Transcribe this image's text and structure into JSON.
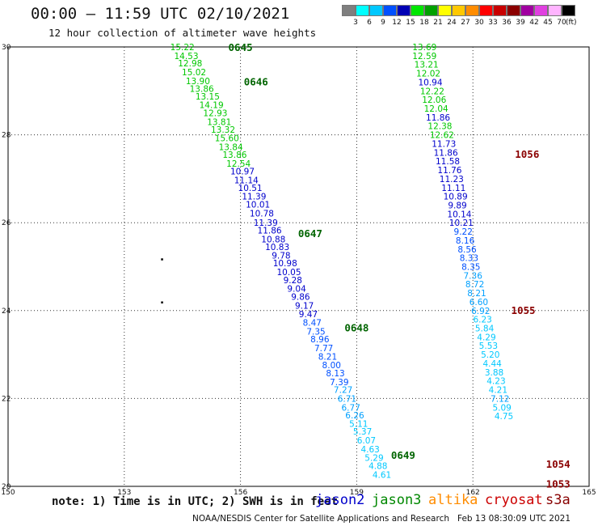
{
  "header": {
    "title": "00:00 – 11:59 UTC 02/10/2021",
    "subtitle": "12 hour collection of altimeter wave heights"
  },
  "colorbar": {
    "unit": "(ft)",
    "bins": [
      {
        "label": "3",
        "color": "#7f7f7f"
      },
      {
        "label": "6",
        "color": "#00ffff"
      },
      {
        "label": "9",
        "color": "#00c8ff"
      },
      {
        "label": "12",
        "color": "#0050ff"
      },
      {
        "label": "15",
        "color": "#0000b4"
      },
      {
        "label": "18",
        "color": "#00e600"
      },
      {
        "label": "21",
        "color": "#00a000"
      },
      {
        "label": "24",
        "color": "#ffff00"
      },
      {
        "label": "27",
        "color": "#ffc800"
      },
      {
        "label": "30",
        "color": "#ff8c00"
      },
      {
        "label": "33",
        "color": "#ff0000"
      },
      {
        "label": "36",
        "color": "#c80000"
      },
      {
        "label": "39",
        "color": "#8b0000"
      },
      {
        "label": "42",
        "color": "#a000a0"
      },
      {
        "label": "45",
        "color": "#e040e0"
      },
      {
        "label": "70",
        "color": "#ffb4ff"
      },
      {
        "label": "",
        "color": "#000000"
      }
    ]
  },
  "footer": {
    "note": "note: 1) Time is in UTC; 2) SWH is in feet",
    "credit": "NOAA/NESDIS Center for Satellite Applications and Research   Feb 13 08:30:09 UTC 2021",
    "satellites": [
      {
        "name": "jason2",
        "color": "#0000cc"
      },
      {
        "name": "jason3",
        "color": "#008800"
      },
      {
        "name": "altika",
        "color": "#ff8c00"
      },
      {
        "name": "cryosat",
        "color": "#cc0000"
      },
      {
        "name": "s3a",
        "color": "#880000"
      }
    ]
  },
  "map_data": {
    "lon_range": [
      150,
      165
    ],
    "lat_range": [
      20,
      30
    ],
    "lon_ticks": [
      "150",
      "153",
      "156",
      "159",
      "162",
      "165"
    ],
    "lat_ticks": [
      "20",
      "22",
      "24",
      "26",
      "28",
      "30"
    ],
    "time_labels": [
      {
        "text": "0645",
        "color": "#006400",
        "lon": 156.0,
        "lat": 29.98
      },
      {
        "text": "0646",
        "color": "#006400",
        "lon": 156.4,
        "lat": 29.2
      },
      {
        "text": "0647",
        "color": "#006400",
        "lon": 157.8,
        "lat": 25.75
      },
      {
        "text": "0648",
        "color": "#006400",
        "lon": 159.0,
        "lat": 23.6
      },
      {
        "text": "0649",
        "color": "#006400",
        "lon": 160.2,
        "lat": 20.7
      },
      {
        "text": "1056",
        "color": "#8b0000",
        "lon": 163.4,
        "lat": 27.55
      },
      {
        "text": "1055",
        "color": "#8b0000",
        "lon": 163.3,
        "lat": 24.0
      },
      {
        "text": "1054",
        "color": "#8b0000",
        "lon": 164.2,
        "lat": 20.5
      },
      {
        "text": "1053",
        "color": "#8b0000",
        "lon": 164.2,
        "lat": 20.05
      }
    ],
    "dots": [
      {
        "lon": 153.97,
        "lat": 25.17
      },
      {
        "lon": 153.97,
        "lat": 24.19
      }
    ],
    "tracks": [
      {
        "name": "jason3 pass",
        "points": [
          {
            "v": "15.22",
            "lon": 154.5,
            "lat": 30.0,
            "color": "#00c800"
          },
          {
            "v": "14.53",
            "lon": 154.6,
            "lat": 29.8,
            "color": "#00c800"
          },
          {
            "v": "12.98",
            "lon": 154.7,
            "lat": 29.63,
            "color": "#00c800"
          },
          {
            "v": "15.02",
            "lon": 154.8,
            "lat": 29.43,
            "color": "#00c800"
          },
          {
            "v": "13.90",
            "lon": 154.9,
            "lat": 29.23,
            "color": "#00c800"
          },
          {
            "v": "13.86",
            "lon": 155.0,
            "lat": 29.05,
            "color": "#00c800"
          },
          {
            "v": "13.15",
            "lon": 155.15,
            "lat": 28.88,
            "color": "#00c800"
          },
          {
            "v": "14.19",
            "lon": 155.25,
            "lat": 28.68,
            "color": "#00c800"
          },
          {
            "v": "12.93",
            "lon": 155.35,
            "lat": 28.5,
            "color": "#00c800"
          },
          {
            "v": "13.81",
            "lon": 155.45,
            "lat": 28.3,
            "color": "#00c800"
          },
          {
            "v": "13.32",
            "lon": 155.55,
            "lat": 28.12,
            "color": "#00c800"
          },
          {
            "v": "15.60",
            "lon": 155.65,
            "lat": 27.93,
            "color": "#00c800"
          },
          {
            "v": "13.84",
            "lon": 155.75,
            "lat": 27.73,
            "color": "#00c800"
          },
          {
            "v": "13.86",
            "lon": 155.85,
            "lat": 27.55,
            "color": "#00c800"
          },
          {
            "v": "12.54",
            "lon": 155.95,
            "lat": 27.35,
            "color": "#00c800"
          },
          {
            "v": "10.97",
            "lon": 156.05,
            "lat": 27.17,
            "color": "#0000cc"
          },
          {
            "v": "11.14",
            "lon": 156.15,
            "lat": 26.97,
            "color": "#0000cc"
          },
          {
            "v": "10.51",
            "lon": 156.25,
            "lat": 26.8,
            "color": "#0000cc"
          },
          {
            "v": "11.39",
            "lon": 156.35,
            "lat": 26.6,
            "color": "#0000cc"
          },
          {
            "v": "10.01",
            "lon": 156.45,
            "lat": 26.42,
            "color": "#0000cc"
          },
          {
            "v": "10.78",
            "lon": 156.55,
            "lat": 26.22,
            "color": "#0000cc"
          },
          {
            "v": "11.39",
            "lon": 156.65,
            "lat": 26.0,
            "color": "#0000cc"
          },
          {
            "v": "11.86",
            "lon": 156.75,
            "lat": 25.83,
            "color": "#0000cc"
          },
          {
            "v": "10.88",
            "lon": 156.85,
            "lat": 25.63,
            "color": "#0000cc"
          },
          {
            "v": "10.83",
            "lon": 156.95,
            "lat": 25.45,
            "color": "#0000cc"
          },
          {
            "v": "9.78",
            "lon": 157.05,
            "lat": 25.26,
            "color": "#0000cc"
          },
          {
            "v": "10.98",
            "lon": 157.15,
            "lat": 25.08,
            "color": "#0000cc"
          },
          {
            "v": "10.05",
            "lon": 157.25,
            "lat": 24.88,
            "color": "#0000cc"
          },
          {
            "v": "9.28",
            "lon": 157.35,
            "lat": 24.7,
            "color": "#0000cc"
          },
          {
            "v": "9.04",
            "lon": 157.45,
            "lat": 24.5,
            "color": "#0000cc"
          },
          {
            "v": "9.86",
            "lon": 157.55,
            "lat": 24.32,
            "color": "#0000cc"
          },
          {
            "v": "9.17",
            "lon": 157.65,
            "lat": 24.12,
            "color": "#0000cc"
          },
          {
            "v": "9.47",
            "lon": 157.75,
            "lat": 23.92,
            "color": "#0000cc"
          },
          {
            "v": "8.47",
            "lon": 157.85,
            "lat": 23.73,
            "color": "#0050ff"
          },
          {
            "v": "7.35",
            "lon": 157.95,
            "lat": 23.53,
            "color": "#0050ff"
          },
          {
            "v": "8.96",
            "lon": 158.05,
            "lat": 23.35,
            "color": "#0050ff"
          },
          {
            "v": "7.77",
            "lon": 158.15,
            "lat": 23.15,
            "color": "#0050ff"
          },
          {
            "v": "8.21",
            "lon": 158.25,
            "lat": 22.96,
            "color": "#0050ff"
          },
          {
            "v": "8.00",
            "lon": 158.35,
            "lat": 22.76,
            "color": "#0050ff"
          },
          {
            "v": "8.13",
            "lon": 158.45,
            "lat": 22.58,
            "color": "#0050ff"
          },
          {
            "v": "7.39",
            "lon": 158.55,
            "lat": 22.38,
            "color": "#0050ff"
          },
          {
            "v": "7.27",
            "lon": 158.65,
            "lat": 22.2,
            "color": "#00a0ff"
          },
          {
            "v": "6.71",
            "lon": 158.75,
            "lat": 22.0,
            "color": "#00a0ff"
          },
          {
            "v": "6.77",
            "lon": 158.85,
            "lat": 21.8,
            "color": "#00a0ff"
          },
          {
            "v": "6.26",
            "lon": 158.95,
            "lat": 21.62,
            "color": "#00a0ff"
          },
          {
            "v": "5.11",
            "lon": 159.05,
            "lat": 21.43,
            "color": "#00c8ff"
          },
          {
            "v": "5.37",
            "lon": 159.15,
            "lat": 21.25,
            "color": "#00c8ff"
          },
          {
            "v": "6.07",
            "lon": 159.25,
            "lat": 21.05,
            "color": "#00c8ff"
          },
          {
            "v": "4.63",
            "lon": 159.35,
            "lat": 20.85,
            "color": "#00c8ff"
          },
          {
            "v": "5.29",
            "lon": 159.45,
            "lat": 20.65,
            "color": "#00c8ff"
          },
          {
            "v": "4.88",
            "lon": 159.55,
            "lat": 20.47,
            "color": "#00c8ff"
          },
          {
            "v": "4.61",
            "lon": 159.65,
            "lat": 20.27,
            "color": "#00c8ff"
          }
        ]
      },
      {
        "name": "s3a pass",
        "points": [
          {
            "v": "13.69",
            "lon": 160.75,
            "lat": 30.0,
            "color": "#00c800"
          },
          {
            "v": "12.59",
            "lon": 160.75,
            "lat": 29.8,
            "color": "#00c800"
          },
          {
            "v": "13.21",
            "lon": 160.8,
            "lat": 29.6,
            "color": "#00c800"
          },
          {
            "v": "12.02",
            "lon": 160.85,
            "lat": 29.4,
            "color": "#00c800"
          },
          {
            "v": "10.94",
            "lon": 160.9,
            "lat": 29.2,
            "color": "#0000cc"
          },
          {
            "v": "12.22",
            "lon": 160.95,
            "lat": 29.0,
            "color": "#00c800"
          },
          {
            "v": "12.06",
            "lon": 161.0,
            "lat": 28.8,
            "color": "#00c800"
          },
          {
            "v": "12.04",
            "lon": 161.05,
            "lat": 28.6,
            "color": "#00c800"
          },
          {
            "v": "11.86",
            "lon": 161.1,
            "lat": 28.4,
            "color": "#0000cc"
          },
          {
            "v": "12.38",
            "lon": 161.15,
            "lat": 28.2,
            "color": "#00c800"
          },
          {
            "v": "12.62",
            "lon": 161.2,
            "lat": 28.0,
            "color": "#00c800"
          },
          {
            "v": "11.73",
            "lon": 161.25,
            "lat": 27.8,
            "color": "#0000cc"
          },
          {
            "v": "11.86",
            "lon": 161.3,
            "lat": 27.6,
            "color": "#0000cc"
          },
          {
            "v": "11.58",
            "lon": 161.35,
            "lat": 27.4,
            "color": "#0000cc"
          },
          {
            "v": "11.76",
            "lon": 161.4,
            "lat": 27.2,
            "color": "#0000cc"
          },
          {
            "v": "11.23",
            "lon": 161.45,
            "lat": 27.0,
            "color": "#0000cc"
          },
          {
            "v": "11.11",
            "lon": 161.5,
            "lat": 26.8,
            "color": "#0000cc"
          },
          {
            "v": "10.89",
            "lon": 161.55,
            "lat": 26.6,
            "color": "#0000cc"
          },
          {
            "v": "9.89",
            "lon": 161.6,
            "lat": 26.4,
            "color": "#0000cc"
          },
          {
            "v": "10.14",
            "lon": 161.65,
            "lat": 26.2,
            "color": "#0000cc"
          },
          {
            "v": "10.21",
            "lon": 161.7,
            "lat": 26.0,
            "color": "#0000cc"
          },
          {
            "v": "9.22",
            "lon": 161.75,
            "lat": 25.8,
            "color": "#0050ff"
          },
          {
            "v": "8.16",
            "lon": 161.8,
            "lat": 25.6,
            "color": "#0050ff"
          },
          {
            "v": "8.56",
            "lon": 161.85,
            "lat": 25.4,
            "color": "#0050ff"
          },
          {
            "v": "8.33",
            "lon": 161.9,
            "lat": 25.2,
            "color": "#0050ff"
          },
          {
            "v": "8.35",
            "lon": 161.95,
            "lat": 25.0,
            "color": "#0050ff"
          },
          {
            "v": "7.36",
            "lon": 162.0,
            "lat": 24.8,
            "color": "#00a0ff"
          },
          {
            "v": "8.72",
            "lon": 162.05,
            "lat": 24.6,
            "color": "#00a0ff"
          },
          {
            "v": "8.21",
            "lon": 162.1,
            "lat": 24.4,
            "color": "#00a0ff"
          },
          {
            "v": "6.60",
            "lon": 162.15,
            "lat": 24.2,
            "color": "#00a0ff"
          },
          {
            "v": "6.92",
            "lon": 162.2,
            "lat": 24.0,
            "color": "#00a0ff"
          },
          {
            "v": "6.23",
            "lon": 162.25,
            "lat": 23.8,
            "color": "#00c8ff"
          },
          {
            "v": "5.84",
            "lon": 162.3,
            "lat": 23.6,
            "color": "#00c8ff"
          },
          {
            "v": "4.29",
            "lon": 162.35,
            "lat": 23.4,
            "color": "#00c8ff"
          },
          {
            "v": "5.53",
            "lon": 162.4,
            "lat": 23.2,
            "color": "#00c8ff"
          },
          {
            "v": "5.20",
            "lon": 162.45,
            "lat": 23.0,
            "color": "#00c8ff"
          },
          {
            "v": "4.44",
            "lon": 162.5,
            "lat": 22.8,
            "color": "#00c8ff"
          },
          {
            "v": "3.88",
            "lon": 162.55,
            "lat": 22.6,
            "color": "#00c8ff"
          },
          {
            "v": "4.23",
            "lon": 162.6,
            "lat": 22.4,
            "color": "#00c8ff"
          },
          {
            "v": "4.21",
            "lon": 162.65,
            "lat": 22.2,
            "color": "#00c8ff"
          },
          {
            "v": "7.12",
            "lon": 162.7,
            "lat": 22.0,
            "color": "#00a0ff"
          },
          {
            "v": "5.09",
            "lon": 162.75,
            "lat": 21.8,
            "color": "#00c8ff"
          },
          {
            "v": "4.75",
            "lon": 162.8,
            "lat": 21.6,
            "color": "#00c8ff"
          }
        ]
      }
    ]
  }
}
